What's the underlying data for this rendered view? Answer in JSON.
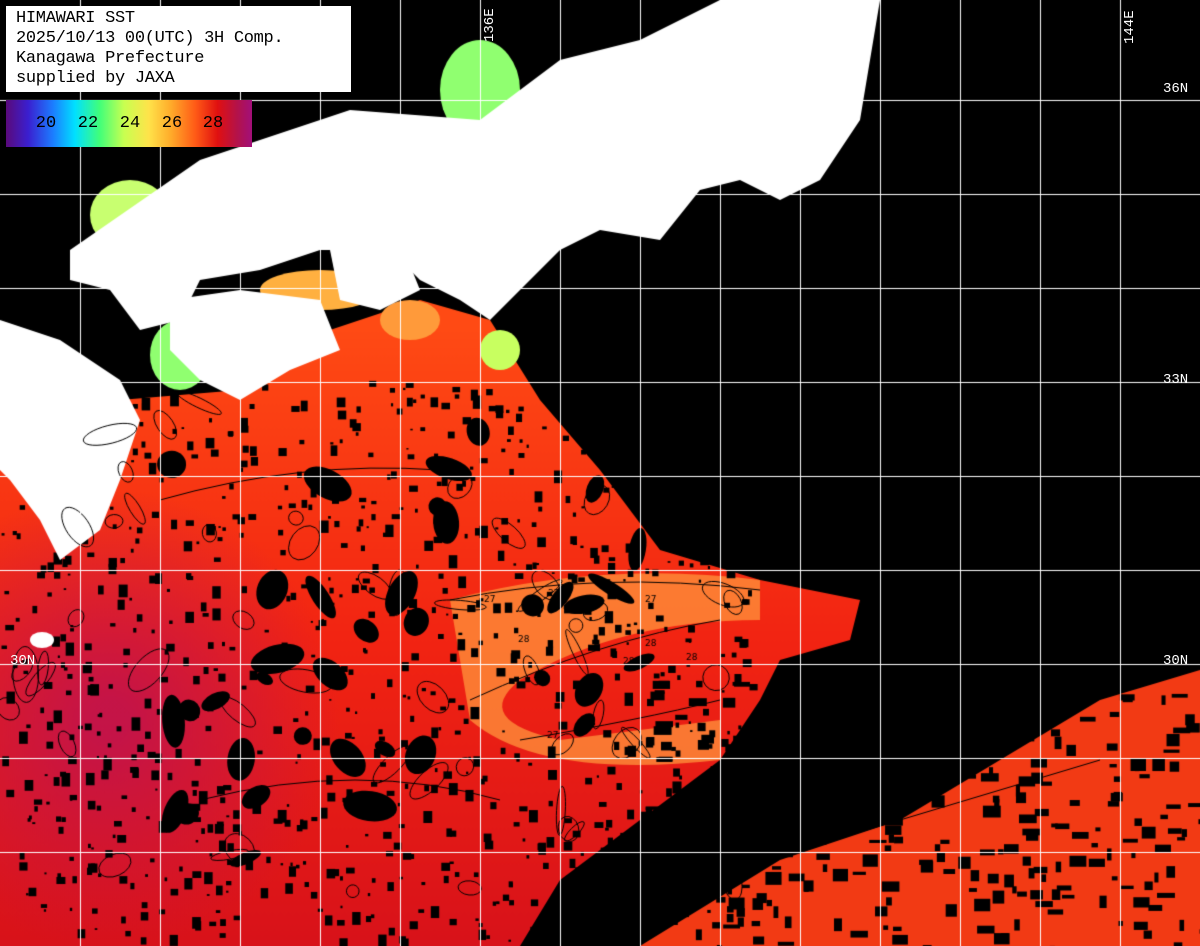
{
  "title": {
    "line1": "HIMAWARI SST",
    "line2": "2025/10/13 00(UTC) 3H Comp.",
    "line3": "Kanagawa Prefecture",
    "line4": "supplied by JAXA"
  },
  "colorbar": {
    "ticks": [
      "20",
      "22",
      "24",
      "26",
      "28"
    ]
  },
  "graticule": {
    "lat_labels": [
      "36N",
      "33N",
      "30N",
      "30N"
    ],
    "lon_labels": [
      "136E",
      "144E"
    ]
  },
  "contour_labels": [
    "27",
    "27",
    "27",
    "28",
    "28",
    "28",
    "27",
    "28"
  ],
  "colors": {
    "land": "#ffffff",
    "no_data": "#000000",
    "grid": "#ffffff",
    "contour": "#000000"
  }
}
